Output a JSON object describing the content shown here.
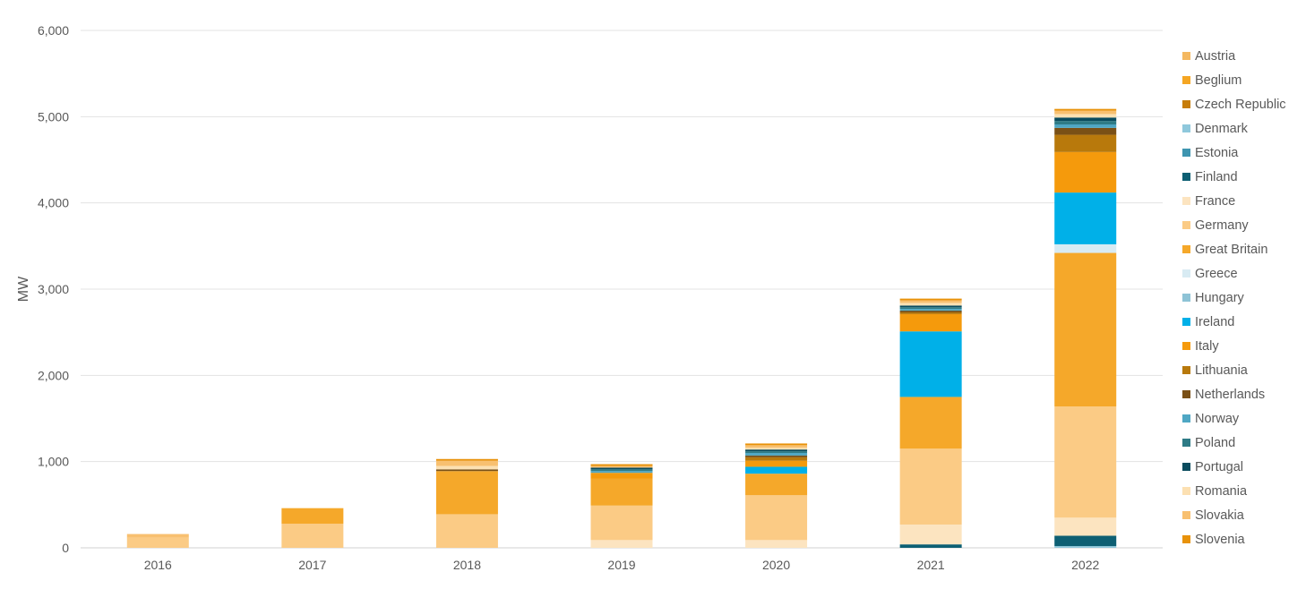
{
  "chart_data": {
    "type": "bar",
    "stacked": true,
    "title": "",
    "xlabel": "",
    "ylabel": "MW",
    "ylim": [
      0,
      6000
    ],
    "yticks": [
      0,
      1000,
      2000,
      3000,
      4000,
      5000,
      6000
    ],
    "ytick_labels": [
      "0",
      "1,000",
      "2,000",
      "3,000",
      "4,000",
      "5,000",
      "6,000"
    ],
    "grid": true,
    "legend_position": "right",
    "categories": [
      "2016",
      "2017",
      "2018",
      "2019",
      "2020",
      "2021",
      "2022"
    ],
    "series": [
      {
        "name": "Austria",
        "color": "#F4B860",
        "values": [
          0,
          0,
          0,
          0,
          0,
          0,
          0
        ]
      },
      {
        "name": "Beglium",
        "color": "#F5A623",
        "values": [
          0,
          0,
          0,
          0,
          0,
          0,
          0
        ]
      },
      {
        "name": "Czech Republic",
        "color": "#C77D0A",
        "values": [
          0,
          0,
          0,
          0,
          0,
          0,
          0
        ]
      },
      {
        "name": "Denmark",
        "color": "#8FC8DC",
        "values": [
          0,
          0,
          0,
          0,
          0,
          0,
          20
        ]
      },
      {
        "name": "Estonia",
        "color": "#3E95B0",
        "values": [
          0,
          0,
          0,
          0,
          0,
          0,
          0
        ]
      },
      {
        "name": "Finland",
        "color": "#0D5F73",
        "values": [
          0,
          0,
          0,
          0,
          0,
          40,
          120
        ]
      },
      {
        "name": "France",
        "color": "#FCE4C0",
        "values": [
          0,
          0,
          0,
          90,
          90,
          230,
          210
        ]
      },
      {
        "name": "Germany",
        "color": "#FBCB85",
        "values": [
          120,
          280,
          390,
          400,
          520,
          880,
          1290
        ]
      },
      {
        "name": "Great Britain",
        "color": "#F5A82A",
        "values": [
          0,
          180,
          500,
          310,
          250,
          600,
          1780
        ]
      },
      {
        "name": "Greece",
        "color": "#D8EBF3",
        "values": [
          0,
          0,
          0,
          0,
          0,
          0,
          100
        ]
      },
      {
        "name": "Hungary",
        "color": "#8EC3D6",
        "values": [
          0,
          0,
          0,
          0,
          0,
          0,
          0
        ]
      },
      {
        "name": "Ireland",
        "color": "#00B0E8",
        "values": [
          0,
          0,
          0,
          0,
          80,
          760,
          600
        ]
      },
      {
        "name": "Italy",
        "color": "#F59A0C",
        "values": [
          0,
          0,
          0,
          70,
          70,
          200,
          470
        ]
      },
      {
        "name": "Lithuania",
        "color": "#B8790C",
        "values": [
          0,
          0,
          0,
          0,
          40,
          20,
          200
        ]
      },
      {
        "name": "Netherlands",
        "color": "#7A5016",
        "values": [
          0,
          0,
          20,
          0,
          20,
          20,
          80
        ]
      },
      {
        "name": "Norway",
        "color": "#4FA7C4",
        "values": [
          0,
          0,
          0,
          20,
          30,
          20,
          40
        ]
      },
      {
        "name": "Poland",
        "color": "#2E7B86",
        "values": [
          0,
          0,
          0,
          20,
          20,
          20,
          40
        ]
      },
      {
        "name": "Portugal",
        "color": "#0A4C5E",
        "values": [
          0,
          0,
          0,
          20,
          20,
          20,
          40
        ]
      },
      {
        "name": "Romania",
        "color": "#FCE0B2",
        "values": [
          0,
          0,
          40,
          0,
          20,
          30,
          40
        ]
      },
      {
        "name": "Slovakia",
        "color": "#F8C070",
        "values": [
          40,
          0,
          60,
          20,
          30,
          30,
          40
        ]
      },
      {
        "name": "Slovenia",
        "color": "#E8920A",
        "values": [
          0,
          0,
          20,
          20,
          20,
          20,
          20
        ]
      }
    ]
  }
}
